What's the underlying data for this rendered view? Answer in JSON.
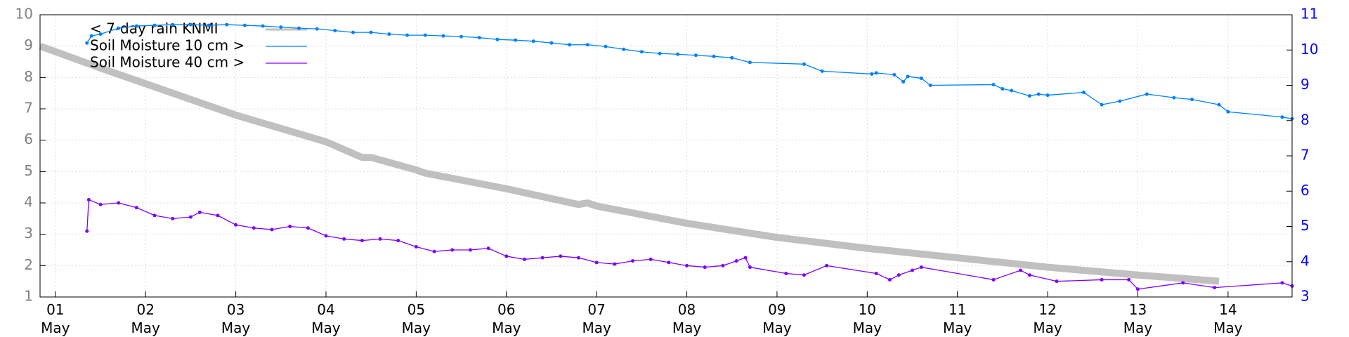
{
  "chart_data": {
    "type": "line",
    "xlim": [
      0.83,
      14.71
    ],
    "ylim": [
      1,
      10
    ],
    "y2lim": [
      3,
      11
    ],
    "xticks": [
      {
        "value": 1,
        "label": "01\nMay"
      },
      {
        "value": 2,
        "label": "02\nMay"
      },
      {
        "value": 3,
        "label": "03\nMay"
      },
      {
        "value": 4,
        "label": "04\nMay"
      },
      {
        "value": 5,
        "label": "05\nMay"
      },
      {
        "value": 6,
        "label": "06\nMay"
      },
      {
        "value": 7,
        "label": "07\nMay"
      },
      {
        "value": 8,
        "label": "08\nMay"
      },
      {
        "value": 9,
        "label": "09\nMay"
      },
      {
        "value": 10,
        "label": "10\nMay"
      },
      {
        "value": 11,
        "label": "11\nMay"
      },
      {
        "value": 12,
        "label": "12\nMay"
      },
      {
        "value": 13,
        "label": "13\nMay"
      },
      {
        "value": 14,
        "label": "14\nMay"
      }
    ],
    "yticks": [
      1,
      2,
      3,
      4,
      5,
      6,
      7,
      8,
      9,
      10
    ],
    "y2ticks": [
      3,
      4,
      5,
      6,
      7,
      8,
      9,
      10,
      11
    ],
    "grid": true,
    "legend": "top-left",
    "y_color": "#808080",
    "y2_color": "#0000ff",
    "series": [
      {
        "name": "< 7-day rain KNMI",
        "color": "#c0c0c0",
        "width": 10,
        "markers": false,
        "x": [
          0.83,
          1.5,
          2,
          3,
          4,
          4.4,
          4.5,
          5,
          5.1,
          6,
          6.8,
          6.9,
          7,
          8,
          9,
          10,
          11,
          12,
          13,
          13.9
        ],
        "values": [
          9.0,
          8.3,
          7.8,
          6.8,
          5.95,
          5.45,
          5.45,
          5.05,
          4.95,
          4.45,
          3.95,
          4.0,
          3.9,
          3.35,
          2.9,
          2.55,
          2.25,
          1.95,
          1.7,
          1.5
        ]
      },
      {
        "name": "Soil Moisture 10 cm >",
        "color": "#0080ff",
        "width": 1.3,
        "markers": true,
        "axis": "y2",
        "x": [
          1.35,
          1.4,
          1.5,
          1.7,
          1.9,
          2.1,
          2.3,
          2.5,
          2.7,
          2.9,
          3.1,
          3.3,
          3.5,
          3.7,
          3.9,
          4.1,
          4.3,
          4.5,
          4.7,
          4.9,
          5.1,
          5.3,
          5.5,
          5.7,
          5.9,
          6.1,
          6.3,
          6.5,
          6.7,
          6.9,
          7.1,
          7.3,
          7.5,
          7.7,
          7.9,
          8.1,
          8.3,
          8.5,
          8.7,
          9.3,
          9.5,
          10.05,
          10.1,
          10.3,
          10.4,
          10.45,
          10.6,
          10.7,
          11.4,
          11.5,
          11.6,
          11.8,
          11.9,
          12.0,
          12.4,
          12.6,
          12.8,
          13.1,
          13.4,
          13.6,
          13.9,
          14.0,
          14.6,
          14.71
        ],
        "values": [
          10.2,
          10.4,
          10.45,
          10.62,
          10.68,
          10.7,
          10.72,
          10.72,
          10.7,
          10.72,
          10.7,
          10.68,
          10.65,
          10.62,
          10.6,
          10.55,
          10.5,
          10.5,
          10.45,
          10.42,
          10.42,
          10.4,
          10.38,
          10.35,
          10.3,
          10.28,
          10.25,
          10.2,
          10.15,
          10.15,
          10.1,
          10.02,
          9.95,
          9.9,
          9.88,
          9.85,
          9.82,
          9.78,
          9.65,
          9.6,
          9.4,
          9.32,
          9.35,
          9.3,
          9.1,
          9.25,
          9.2,
          9.0,
          9.02,
          8.9,
          8.85,
          8.7,
          8.75,
          8.72,
          8.8,
          8.45,
          8.55,
          8.75,
          8.65,
          8.6,
          8.45,
          8.25,
          8.1,
          8.05
        ]
      },
      {
        "name": "Soil Moisture 40 cm >",
        "color": "#8000ff",
        "width": 1.3,
        "markers": true,
        "x": [
          1.35,
          1.37,
          1.5,
          1.7,
          1.9,
          2.1,
          2.3,
          2.5,
          2.6,
          2.8,
          3.0,
          3.2,
          3.4,
          3.6,
          3.8,
          4.0,
          4.2,
          4.4,
          4.6,
          4.8,
          5.0,
          5.2,
          5.4,
          5.6,
          5.8,
          6.0,
          6.2,
          6.4,
          6.6,
          6.8,
          7.0,
          7.2,
          7.4,
          7.6,
          7.8,
          8.0,
          8.2,
          8.4,
          8.55,
          8.65,
          8.7,
          9.1,
          9.3,
          9.55,
          10.1,
          10.25,
          10.35,
          10.5,
          10.6,
          11.4,
          11.7,
          11.8,
          12.1,
          12.6,
          12.9,
          13.0,
          13.5,
          13.85,
          14.6,
          14.71
        ],
        "values": [
          3.1,
          4.1,
          3.95,
          4.0,
          3.85,
          3.6,
          3.5,
          3.55,
          3.7,
          3.6,
          3.3,
          3.2,
          3.15,
          3.25,
          3.2,
          2.95,
          2.85,
          2.8,
          2.85,
          2.8,
          2.6,
          2.45,
          2.5,
          2.5,
          2.55,
          2.3,
          2.2,
          2.25,
          2.3,
          2.25,
          2.1,
          2.05,
          2.15,
          2.2,
          2.1,
          2.0,
          1.95,
          2.0,
          2.15,
          2.25,
          1.95,
          1.75,
          1.7,
          2.0,
          1.75,
          1.55,
          1.7,
          1.85,
          1.95,
          1.55,
          1.85,
          1.7,
          1.5,
          1.55,
          1.55,
          1.25,
          1.45,
          1.3,
          1.45,
          1.35
        ]
      }
    ]
  }
}
